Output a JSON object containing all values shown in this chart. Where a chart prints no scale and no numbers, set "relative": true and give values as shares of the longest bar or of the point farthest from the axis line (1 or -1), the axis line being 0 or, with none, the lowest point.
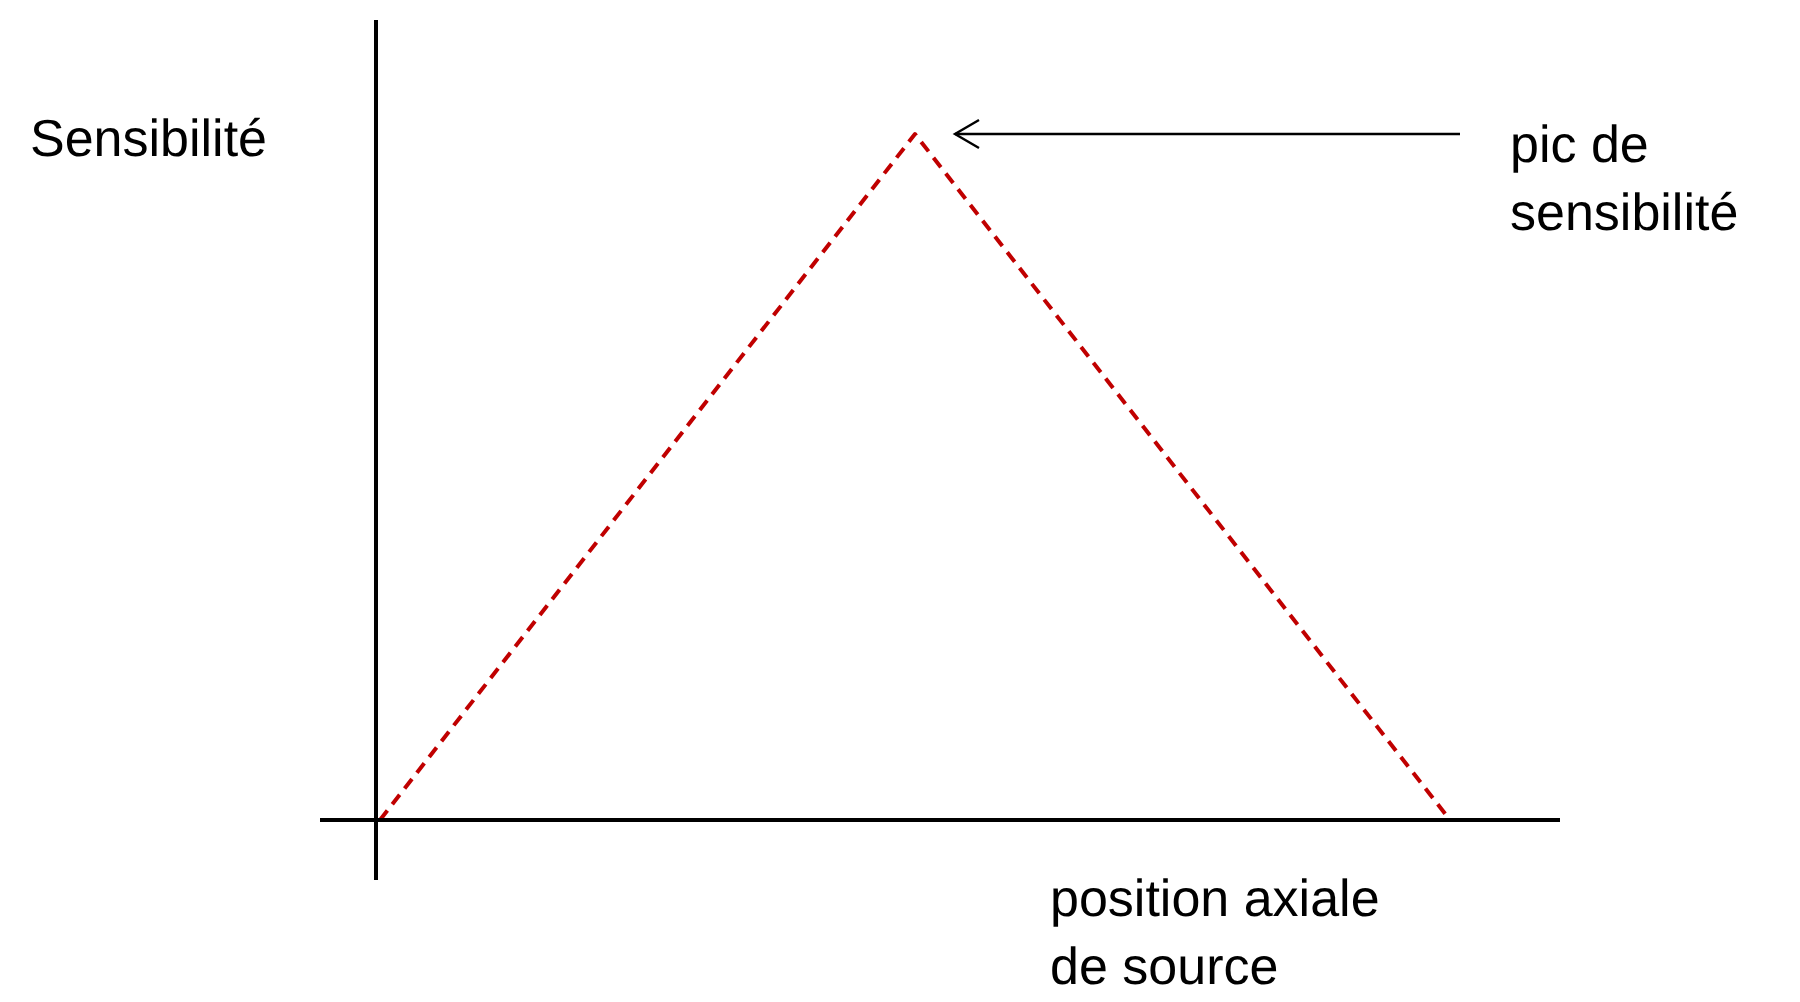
{
  "chart_data": {
    "type": "line",
    "relative": true,
    "xlabel": "position axiale de source",
    "ylabel": "Sensibilité",
    "categories": [
      null,
      null,
      null
    ],
    "series": [
      {
        "color": "#c00000",
        "values": [
          0,
          1,
          0
        ]
      }
    ],
    "line_style": "dashed",
    "marker": "none",
    "legend": false,
    "annotations": [
      "pic de sensibilité"
    ]
  }
}
